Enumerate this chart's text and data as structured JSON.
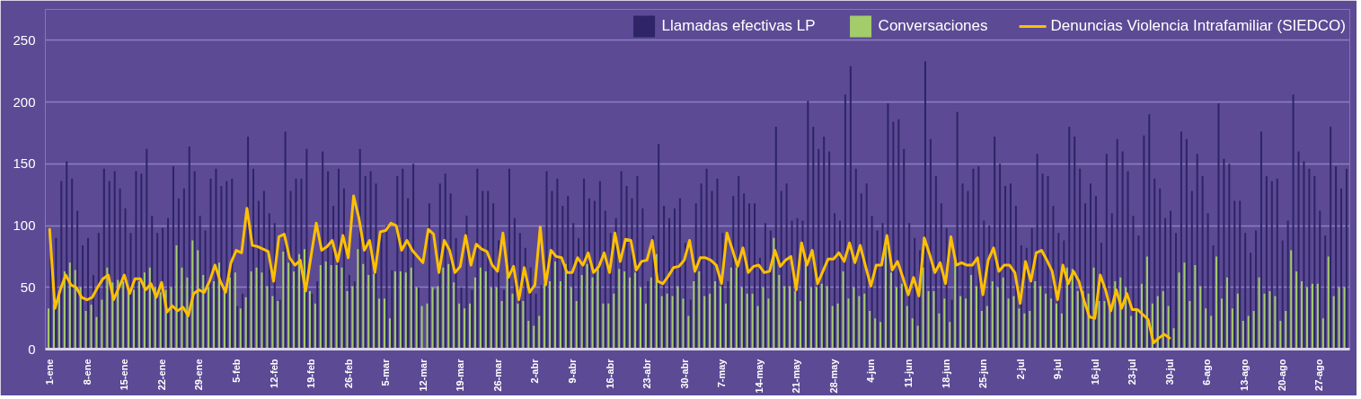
{
  "chart_data": {
    "type": "bar",
    "categories": [
      "1-ene",
      null,
      null,
      null,
      null,
      null,
      null,
      "8-ene",
      null,
      null,
      null,
      null,
      null,
      null,
      "15-ene",
      null,
      null,
      null,
      null,
      null,
      null,
      "22-ene",
      null,
      null,
      null,
      null,
      null,
      null,
      "29-ene",
      null,
      null,
      null,
      null,
      null,
      null,
      "5-feb",
      null,
      null,
      null,
      null,
      null,
      null,
      "12-feb",
      null,
      null,
      null,
      null,
      null,
      null,
      "19-feb",
      null,
      null,
      null,
      null,
      null,
      null,
      "26-feb",
      null,
      null,
      null,
      null,
      null,
      null,
      "5-mar",
      null,
      null,
      null,
      null,
      null,
      null,
      "12-mar",
      null,
      null,
      null,
      null,
      null,
      null,
      "19-mar",
      null,
      null,
      null,
      null,
      null,
      null,
      "26-mar",
      null,
      null,
      null,
      null,
      null,
      null,
      "2-abr",
      null,
      null,
      null,
      null,
      null,
      null,
      "9-abr",
      null,
      null,
      null,
      null,
      null,
      null,
      "16-abr",
      null,
      null,
      null,
      null,
      null,
      null,
      "23-abr",
      null,
      null,
      null,
      null,
      null,
      null,
      "30-abr",
      null,
      null,
      null,
      null,
      null,
      null,
      "7-may",
      null,
      null,
      null,
      null,
      null,
      null,
      "14-may",
      null,
      null,
      null,
      null,
      null,
      null,
      "21-may",
      null,
      null,
      null,
      null,
      null,
      null,
      "28-may",
      null,
      null,
      null,
      null,
      null,
      null,
      "4-jun",
      null,
      null,
      null,
      null,
      null,
      null,
      "11-jun",
      null,
      null,
      null,
      null,
      null,
      null,
      "18-jun",
      null,
      null,
      null,
      null,
      null,
      null,
      "25-jun",
      null,
      null,
      null,
      null,
      null,
      null,
      "2-jul",
      null,
      null,
      null,
      null,
      null,
      null,
      "9-jul",
      null,
      null,
      null,
      null,
      null,
      null,
      "16-jul",
      null,
      null,
      null,
      null,
      null,
      null,
      "23-jul",
      null,
      null,
      null,
      null,
      null,
      null,
      "30-jul",
      null,
      null,
      null,
      null,
      null,
      null,
      "6-ago",
      null,
      null,
      null,
      null,
      null,
      null,
      "13-ago",
      null,
      null,
      null,
      null,
      null,
      null,
      "20-ago",
      null,
      null,
      null,
      null,
      null,
      null,
      "27-ago",
      null,
      null,
      null,
      null,
      null
    ],
    "series": [
      {
        "name": "Llamadas efectivas LP",
        "color": "#2e2466",
        "values": [
          73,
          90,
          136,
          152,
          138,
          112,
          84,
          90,
          60,
          94,
          146,
          136,
          144,
          130,
          114,
          94,
          144,
          142,
          162,
          108,
          94,
          98,
          106,
          148,
          122,
          130,
          164,
          144,
          108,
          96,
          138,
          146,
          132,
          136,
          138,
          35,
          45,
          172,
          146,
          120,
          128,
          110,
          102,
          40,
          176,
          128,
          138,
          138,
          162,
          45,
          55,
          160,
          144,
          116,
          146,
          130,
          60,
          55,
          162,
          140,
          144,
          134,
          96,
          100,
          64,
          140,
          146,
          122,
          150,
          50,
          null,
          118,
          48,
          134,
          142,
          126,
          90,
          50,
          108,
          48,
          146,
          128,
          128,
          118,
          88,
          48,
          146,
          106,
          94,
          82,
          66,
          45,
          52,
          144,
          128,
          138,
          116,
          124,
          102,
          90,
          138,
          122,
          120,
          136,
          112,
          94,
          106,
          144,
          132,
          122,
          140,
          114,
          55,
          92,
          166,
          116,
          106,
          114,
          122,
          86,
          40,
          118,
          134,
          146,
          128,
          138,
          94,
          55,
          124,
          140,
          126,
          118,
          118,
          74,
          102,
          96,
          180,
          128,
          134,
          104,
          106,
          104,
          201,
          180,
          162,
          172,
          160,
          110,
          104,
          206,
          229,
          146,
          126,
          134,
          108,
          96,
          102,
          199,
          184,
          186,
          162,
          102,
          90,
          80,
          233,
          170,
          140,
          118,
          98,
          40,
          192,
          134,
          128,
          146,
          148,
          104,
          100,
          172,
          150,
          132,
          134,
          116,
          84,
          82,
          98,
          158,
          142,
          140,
          116,
          94,
          88,
          180,
          172,
          146,
          118,
          134,
          124,
          86,
          158,
          110,
          170,
          160,
          144,
          108,
          92,
          173,
          190,
          138,
          130,
          106,
          112,
          94,
          176,
          170,
          128,
          158,
          140,
          110,
          84,
          199,
          154,
          150,
          120,
          120,
          94,
          78,
          96,
          176,
          140,
          136,
          138,
          88,
          104,
          206,
          160,
          152,
          146,
          140,
          112,
          92,
          180,
          148,
          130,
          146
        ]
      },
      {
        "name": "Conversaciones",
        "color": "#a3cc6a",
        "values": [
          33,
          36,
          44,
          63,
          70,
          64,
          50,
          31,
          36,
          26,
          40,
          66,
          54,
          56,
          55,
          48,
          48,
          55,
          62,
          66,
          50,
          46,
          48,
          50,
          84,
          66,
          58,
          88,
          80,
          60,
          50,
          55,
          70,
          50,
          58,
          62,
          33,
          42,
          63,
          66,
          62,
          51,
          43,
          39,
          79,
          70,
          63,
          77,
          81,
          47,
          37,
          68,
          71,
          68,
          68,
          66,
          47,
          51,
          81,
          69,
          60,
          61,
          41,
          41,
          25,
          63,
          63,
          62,
          66,
          50,
          35,
          37,
          50,
          51,
          66,
          69,
          54,
          37,
          33,
          37,
          58,
          66,
          63,
          50,
          50,
          39,
          68,
          45,
          37,
          39,
          23,
          19,
          27,
          53,
          55,
          71,
          55,
          69,
          50,
          39,
          60,
          69,
          58,
          67,
          37,
          37,
          45,
          65,
          63,
          58,
          62,
          50,
          37,
          58,
          77,
          43,
          45,
          43,
          51,
          41,
          27,
          55,
          63,
          43,
          45,
          55,
          51,
          37,
          66,
          66,
          50,
          45,
          45,
          35,
          50,
          41,
          90,
          60,
          51,
          51,
          47,
          39,
          70,
          50,
          50,
          53,
          51,
          35,
          37,
          63,
          41,
          50,
          43,
          45,
          31,
          25,
          22,
          83,
          62,
          50,
          53,
          35,
          25,
          19,
          66,
          47,
          47,
          29,
          41,
          22,
          75,
          43,
          41,
          60,
          51,
          31,
          35,
          55,
          50,
          58,
          41,
          43,
          33,
          29,
          31,
          55,
          51,
          45,
          41,
          37,
          29,
          66,
          65,
          47,
          47,
          45,
          66,
          39,
          39,
          35,
          55,
          58,
          50,
          27,
          31,
          53,
          75,
          37,
          43,
          47,
          35,
          17,
          62,
          70,
          39,
          68,
          51,
          33,
          27,
          75,
          41,
          58,
          33,
          45,
          23,
          27,
          31,
          58,
          45,
          47,
          43,
          23,
          31,
          80,
          63,
          55,
          50,
          53,
          53,
          25,
          75,
          43,
          50,
          50
        ]
      },
      {
        "name": "Denuncias Violencia Intrafamiliar (SIEDCO)",
        "type": "line",
        "color": "#ffc000",
        "values": [
          97,
          33,
          48,
          60,
          52,
          50,
          42,
          40,
          42,
          50,
          57,
          60,
          40,
          50,
          60,
          45,
          57,
          57,
          48,
          53,
          42,
          54,
          30,
          35,
          31,
          34,
          27,
          45,
          48,
          46,
          55,
          68,
          55,
          46,
          70,
          80,
          78,
          114,
          84,
          83,
          81,
          79,
          55,
          91,
          93,
          74,
          68,
          72,
          47,
          75,
          102,
          80,
          83,
          88,
          71,
          92,
          74,
          124,
          106,
          80,
          88,
          62,
          95,
          96,
          102,
          100,
          80,
          88,
          80,
          75,
          70,
          97,
          93,
          62,
          88,
          80,
          62,
          67,
          92,
          68,
          85,
          81,
          79,
          68,
          63,
          94,
          58,
          67,
          40,
          66,
          46,
          52,
          99,
          52,
          80,
          75,
          74,
          62,
          62,
          74,
          68,
          78,
          62,
          67,
          78,
          62,
          94,
          71,
          89,
          88,
          64,
          71,
          72,
          88,
          55,
          53,
          59,
          66,
          67,
          72,
          88,
          63,
          74,
          74,
          72,
          68,
          53,
          94,
          81,
          67,
          82,
          62,
          67,
          68,
          62,
          63,
          80,
          67,
          72,
          75,
          48,
          86,
          68,
          80,
          53,
          63,
          73,
          73,
          78,
          71,
          86,
          70,
          84,
          67,
          51,
          68,
          68,
          92,
          64,
          71,
          58,
          44,
          58,
          43,
          90,
          77,
          62,
          70,
          53,
          91,
          68,
          70,
          68,
          68,
          74,
          44,
          72,
          82,
          63,
          68,
          68,
          62,
          37,
          71,
          55,
          78,
          80,
          72,
          63,
          40,
          68,
          53,
          63,
          55,
          39,
          26,
          25,
          60,
          48,
          31,
          48,
          33,
          45,
          32,
          32,
          28,
          24,
          5,
          9,
          12,
          9,
          null,
          null,
          null,
          null,
          null,
          null,
          null,
          null,
          null,
          null,
          null,
          null,
          null,
          null,
          null,
          null,
          null,
          null,
          null,
          null,
          null,
          null,
          null,
          null,
          null,
          null,
          null,
          null,
          null,
          null,
          null,
          null,
          null
        ]
      }
    ],
    "ylim": [
      0,
      275
    ],
    "yticks": [
      0,
      50,
      100,
      150,
      200,
      250
    ],
    "grid": "y",
    "legend": "top right"
  }
}
